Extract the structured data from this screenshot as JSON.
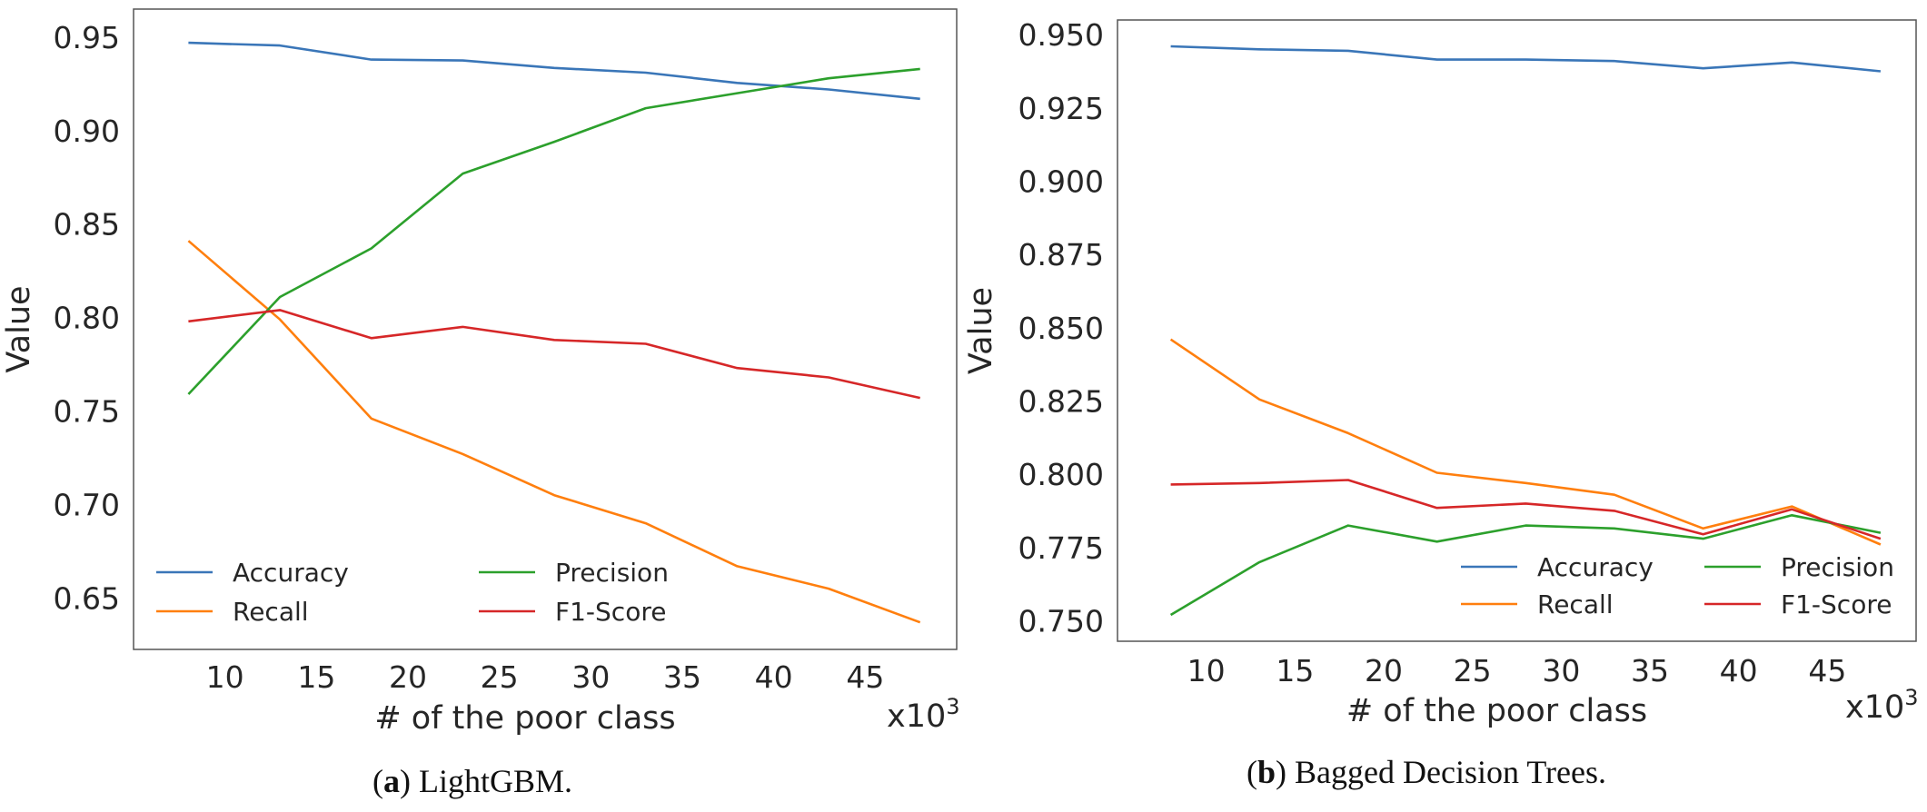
{
  "chart_data": [
    {
      "type": "line",
      "title": "",
      "caption": {
        "label": "a",
        "text": " LightGBM."
      },
      "xlabel": "#  of the poor class",
      "ylabel": "Value",
      "x_multiplier": "x10",
      "x_multiplier_exp": "3",
      "xlim": [
        5,
        50
      ],
      "ylim": [
        0.6225,
        0.965
      ],
      "xticks": [
        10,
        15,
        20,
        25,
        30,
        35,
        40,
        45
      ],
      "xtick_labels": [
        "10",
        "15",
        "20",
        "25",
        "30",
        "35",
        "40",
        "45"
      ],
      "yticks": [
        0.65,
        0.7,
        0.75,
        0.8,
        0.85,
        0.9,
        0.95
      ],
      "ytick_labels": [
        "0.65",
        "0.70",
        "0.75",
        "0.80",
        "0.85",
        "0.90",
        "0.95"
      ],
      "grid": false,
      "legend": {
        "position": "lower-left",
        "columns": 2
      },
      "x": [
        8,
        13,
        18,
        23,
        28,
        33,
        38,
        43,
        48
      ],
      "series": [
        {
          "name": "Accuracy",
          "color": "#3a76b8",
          "values": [
            0.947,
            0.9455,
            0.938,
            0.9375,
            0.9335,
            0.931,
            0.9255,
            0.922,
            0.917
          ]
        },
        {
          "name": "Recall",
          "color": "#ff7f0e",
          "values": [
            0.841,
            0.799,
            0.746,
            0.727,
            0.705,
            0.69,
            0.667,
            0.655,
            0.637
          ]
        },
        {
          "name": "Precision",
          "color": "#2ca02c",
          "values": [
            0.759,
            0.811,
            0.837,
            0.877,
            0.894,
            0.912,
            0.92,
            0.928,
            0.933
          ]
        },
        {
          "name": "F1-Score",
          "color": "#d62728",
          "values": [
            0.798,
            0.804,
            0.789,
            0.795,
            0.788,
            0.786,
            0.773,
            0.768,
            0.757
          ]
        }
      ]
    },
    {
      "type": "line",
      "title": "",
      "caption": {
        "label": "b",
        "text": " Bagged Decision Trees."
      },
      "xlabel": "#  of the poor class",
      "ylabel": "Value",
      "x_multiplier": "x10",
      "x_multiplier_exp": "3",
      "xlim": [
        5,
        50
      ],
      "ylim": [
        0.743,
        0.955
      ],
      "xticks": [
        10,
        15,
        20,
        25,
        30,
        35,
        40,
        45
      ],
      "xtick_labels": [
        "10",
        "15",
        "20",
        "25",
        "30",
        "35",
        "40",
        "45"
      ],
      "yticks": [
        0.75,
        0.775,
        0.8,
        0.825,
        0.85,
        0.875,
        0.9,
        0.925,
        0.95
      ],
      "ytick_labels": [
        "0.750",
        "0.775",
        "0.800",
        "0.825",
        "0.850",
        "0.875",
        "0.900",
        "0.925",
        "0.950"
      ],
      "grid": false,
      "legend": {
        "position": "lower-right",
        "columns": 2
      },
      "x": [
        8,
        13,
        18,
        23,
        28,
        33,
        38,
        43,
        48
      ],
      "series": [
        {
          "name": "Accuracy",
          "color": "#3a76b8",
          "values": [
            0.946,
            0.945,
            0.9445,
            0.9415,
            0.9415,
            0.941,
            0.9385,
            0.9405,
            0.9375
          ]
        },
        {
          "name": "Recall",
          "color": "#ff7f0e",
          "values": [
            0.846,
            0.8255,
            0.814,
            0.8005,
            0.797,
            0.793,
            0.7815,
            0.789,
            0.776
          ]
        },
        {
          "name": "Precision",
          "color": "#2ca02c",
          "values": [
            0.752,
            0.77,
            0.7825,
            0.777,
            0.7825,
            0.7815,
            0.778,
            0.786,
            0.78
          ]
        },
        {
          "name": "F1-Score",
          "color": "#d62728",
          "values": [
            0.7965,
            0.797,
            0.798,
            0.7885,
            0.79,
            0.7875,
            0.7795,
            0.788,
            0.778
          ]
        }
      ]
    }
  ]
}
